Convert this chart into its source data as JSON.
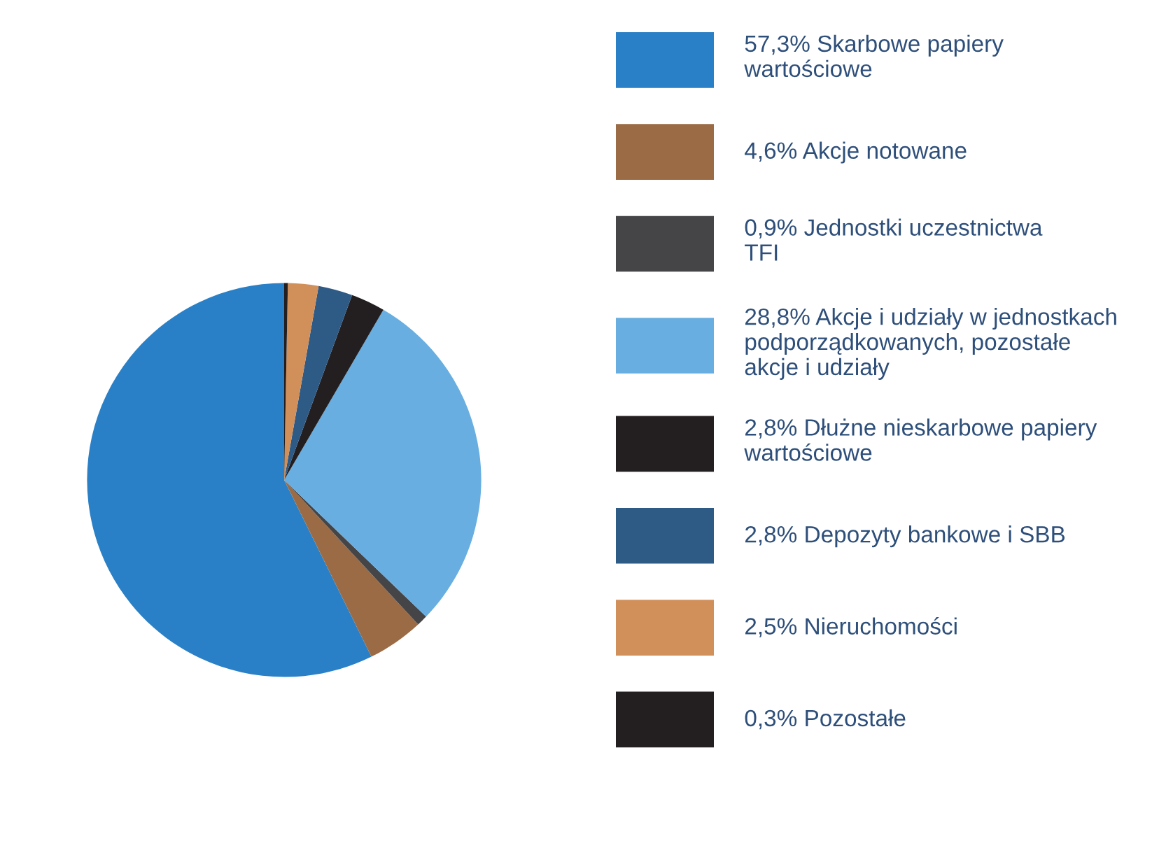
{
  "chart_data": {
    "type": "pie",
    "categories": [
      "Skarbowe papiery\nwartościowe",
      "Akcje notowane",
      "Jednostki uczestnictwa\nTFI",
      "Akcje i udziały w jednostkach\npodporządkowanych, pozostałe\nakcje i udziały",
      "Dłużne nieskarbowe papiery\nwartościowe",
      "Depozyty bankowe i SBB",
      "Nieruchomości",
      "Pozostałe"
    ],
    "values": [
      57.3,
      4.6,
      0.9,
      28.8,
      2.8,
      2.8,
      2.5,
      0.3
    ],
    "value_labels": [
      "57,3%",
      "4,6%",
      "0,9%",
      "28,8%",
      "2,8%",
      "2,8%",
      "2,5%",
      "0,3%"
    ],
    "colors": [
      "#2a80c6",
      "#9a6b45",
      "#454547",
      "#68aee0",
      "#231f20",
      "#2e5a86",
      "#d18f5a",
      "#231f20"
    ],
    "legend": "right"
  }
}
